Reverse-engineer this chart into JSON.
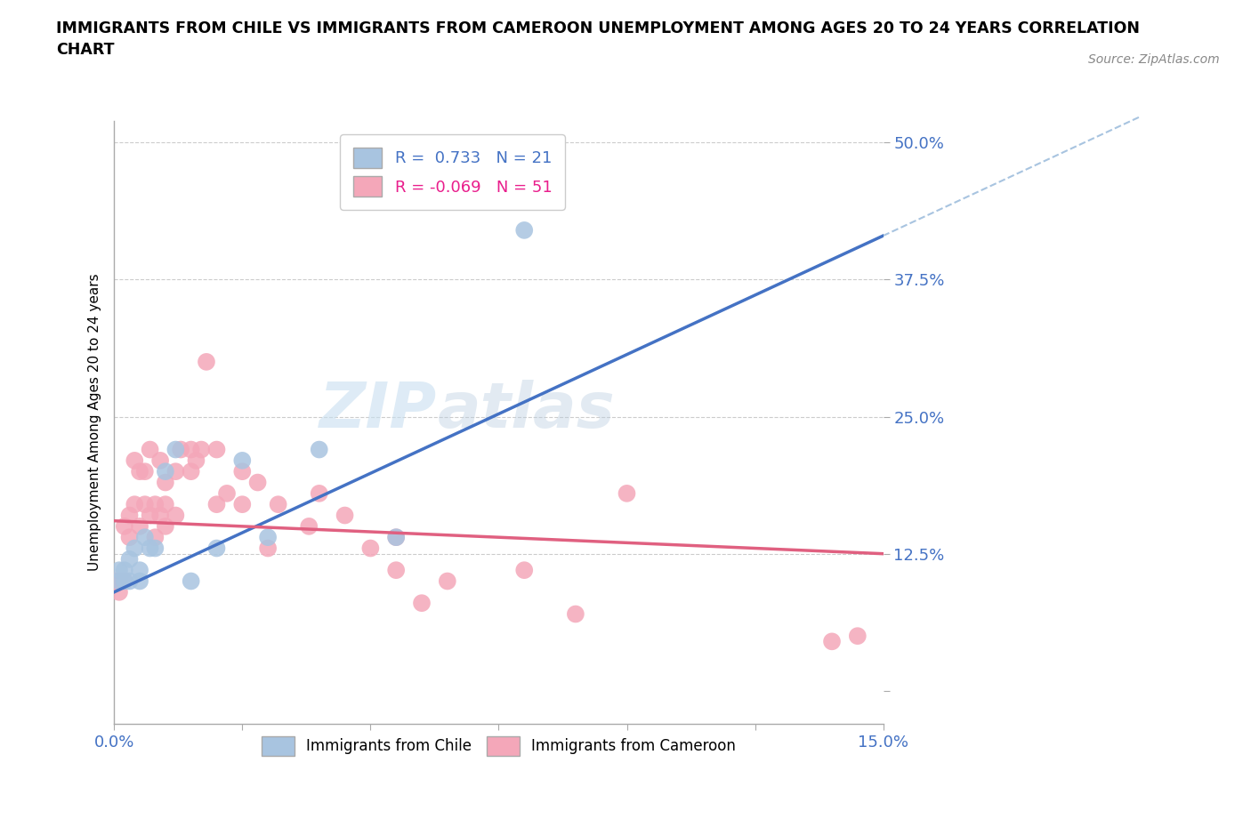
{
  "title": "IMMIGRANTS FROM CHILE VS IMMIGRANTS FROM CAMEROON UNEMPLOYMENT AMONG AGES 20 TO 24 YEARS CORRELATION\nCHART",
  "source": "Source: ZipAtlas.com",
  "ylabel": "Unemployment Among Ages 20 to 24 years",
  "xlim": [
    0.0,
    0.15
  ],
  "ylim": [
    -0.03,
    0.52
  ],
  "yticks": [
    0.0,
    0.125,
    0.25,
    0.375,
    0.5
  ],
  "ytick_labels": [
    "",
    "12.5%",
    "25.0%",
    "37.5%",
    "50.0%"
  ],
  "xticks": [
    0.0,
    0.025,
    0.05,
    0.075,
    0.1,
    0.125,
    0.15
  ],
  "xtick_labels": [
    "0.0%",
    "",
    "",
    "",
    "",
    "",
    "15.0%"
  ],
  "chile_R": 0.733,
  "chile_N": 21,
  "cameroon_R": -0.069,
  "cameroon_N": 51,
  "chile_color": "#a8c4e0",
  "cameroon_color": "#f4a7b9",
  "chile_line_color": "#4472c4",
  "cameroon_line_color": "#e06080",
  "dashed_line_color": "#a8c4e0",
  "watermark_zip": "ZIP",
  "watermark_atlas": "atlas",
  "chile_line_x0": 0.0,
  "chile_line_y0": 0.09,
  "chile_line_x1": 0.15,
  "chile_line_y1": 0.415,
  "cameroon_line_x0": 0.0,
  "cameroon_line_y0": 0.155,
  "cameroon_line_x1": 0.15,
  "cameroon_line_y1": 0.125,
  "chile_scatter_x": [
    0.001,
    0.001,
    0.002,
    0.002,
    0.003,
    0.003,
    0.004,
    0.005,
    0.005,
    0.006,
    0.007,
    0.008,
    0.01,
    0.012,
    0.015,
    0.02,
    0.025,
    0.03,
    0.04,
    0.055,
    0.08
  ],
  "chile_scatter_y": [
    0.1,
    0.11,
    0.1,
    0.11,
    0.1,
    0.12,
    0.13,
    0.1,
    0.11,
    0.14,
    0.13,
    0.13,
    0.2,
    0.22,
    0.1,
    0.13,
    0.21,
    0.14,
    0.22,
    0.14,
    0.42
  ],
  "cameroon_scatter_x": [
    0.0,
    0.001,
    0.001,
    0.002,
    0.002,
    0.003,
    0.003,
    0.004,
    0.004,
    0.005,
    0.005,
    0.006,
    0.006,
    0.007,
    0.007,
    0.008,
    0.008,
    0.009,
    0.009,
    0.01,
    0.01,
    0.01,
    0.012,
    0.012,
    0.013,
    0.015,
    0.015,
    0.016,
    0.017,
    0.018,
    0.02,
    0.02,
    0.022,
    0.025,
    0.025,
    0.028,
    0.03,
    0.032,
    0.038,
    0.04,
    0.045,
    0.05,
    0.055,
    0.055,
    0.06,
    0.065,
    0.08,
    0.09,
    0.1,
    0.14,
    0.145
  ],
  "cameroon_scatter_y": [
    0.1,
    0.09,
    0.1,
    0.1,
    0.15,
    0.14,
    0.16,
    0.17,
    0.21,
    0.15,
    0.2,
    0.17,
    0.2,
    0.16,
    0.22,
    0.14,
    0.17,
    0.16,
    0.21,
    0.15,
    0.17,
    0.19,
    0.16,
    0.2,
    0.22,
    0.2,
    0.22,
    0.21,
    0.22,
    0.3,
    0.17,
    0.22,
    0.18,
    0.17,
    0.2,
    0.19,
    0.13,
    0.17,
    0.15,
    0.18,
    0.16,
    0.13,
    0.14,
    0.11,
    0.08,
    0.1,
    0.11,
    0.07,
    0.18,
    0.045,
    0.05
  ]
}
